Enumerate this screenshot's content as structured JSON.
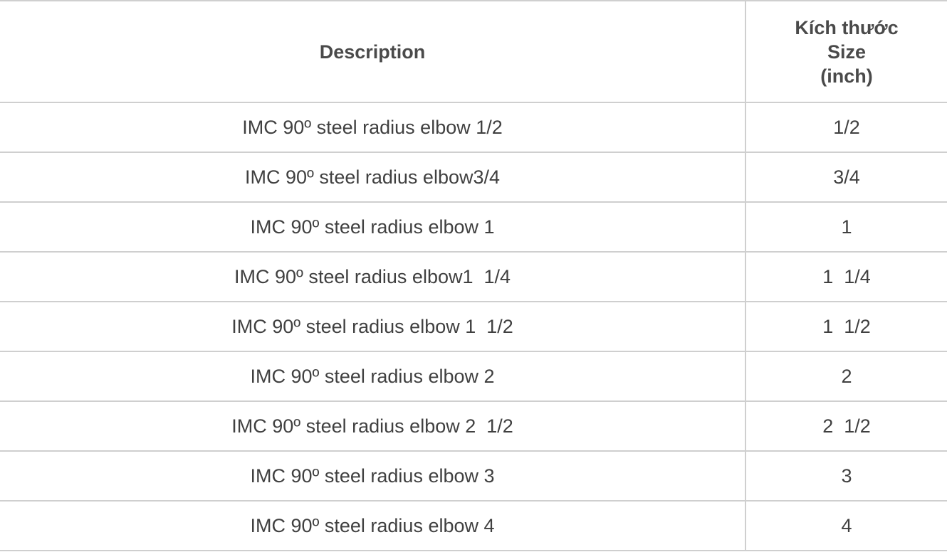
{
  "table": {
    "headers": {
      "description": "Description",
      "size_lines": [
        "Kích thước",
        "Size",
        "(inch)"
      ]
    },
    "rows": [
      {
        "description": "IMC 90º steel radius elbow 1/2",
        "size": "1/2"
      },
      {
        "description": "IMC 90º steel radius elbow3/4",
        "size": "3/4"
      },
      {
        "description": "IMC 90º steel radius elbow 1",
        "size": "1"
      },
      {
        "description": "IMC 90º steel radius elbow1  1/4",
        "size": "1  1/4"
      },
      {
        "description": "IMC 90º steel radius elbow 1  1/2",
        "size": "1  1/2"
      },
      {
        "description": "IMC 90º steel radius elbow 2",
        "size": "2"
      },
      {
        "description": "IMC 90º steel radius elbow 2  1/2",
        "size": "2  1/2"
      },
      {
        "description": "IMC 90º steel radius elbow 3",
        "size": "3"
      },
      {
        "description": "IMC 90º steel radius elbow 4",
        "size": "4"
      }
    ]
  },
  "colors": {
    "text": "#404040",
    "border": "#cfcfcf",
    "background": "#ffffff"
  }
}
